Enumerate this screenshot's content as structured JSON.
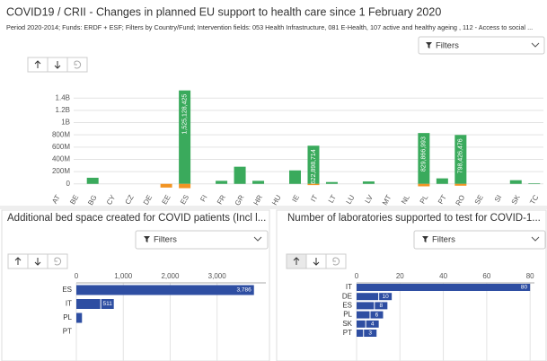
{
  "chart_data": [
    {
      "type": "bar",
      "title": "COVID19 / CRII - Changes in planned EU support to health care since 1 February 2020",
      "subtitle": "Period 2020-2014; Funds: ERDF + ESF; Filters by Country/Fund; Intervention fields: 053 Health Infrastructure, 081 E-Health, 107 active and healthy ageing , 112 - Access to social ...",
      "filters": "Filters",
      "categories": [
        "AT",
        "BE",
        "BG",
        "CY",
        "CZ",
        "DE",
        "EE",
        "ES",
        "FI",
        "FR",
        "GR",
        "HR",
        "HU",
        "IE",
        "IT",
        "LT",
        "LU",
        "LV",
        "MT",
        "NL",
        "PL",
        "PT",
        "RO",
        "SE",
        "SI",
        "SK",
        "TC"
      ],
      "series": [
        {
          "color": "#3aaa5c",
          "values": [
            0,
            0,
            100000000,
            0,
            0,
            0,
            0,
            1525128425,
            0,
            50000000,
            280000000,
            50000000,
            0,
            220000000,
            622898714,
            30000000,
            0,
            40000000,
            0,
            0,
            829866993,
            90000000,
            798426476,
            0,
            0,
            60000000,
            10000000
          ],
          "value_labels": [
            null,
            null,
            null,
            null,
            null,
            null,
            null,
            "1,525,128,425",
            null,
            null,
            null,
            null,
            null,
            null,
            "622,898,714",
            null,
            null,
            null,
            null,
            null,
            "829,866,993",
            null,
            "798,426,476",
            null,
            null,
            null,
            null
          ]
        },
        {
          "color": "#f29423",
          "values": [
            0,
            0,
            0,
            0,
            0,
            0,
            -60000000,
            -70000000,
            0,
            0,
            0,
            0,
            0,
            0,
            -20000000,
            0,
            0,
            0,
            0,
            0,
            -40000000,
            0,
            -30000000,
            0,
            0,
            0,
            0
          ]
        }
      ],
      "ylim": [
        -150000000,
        1550000000
      ],
      "yticks": [
        0,
        {
          "value": 200000000,
          "label": "200M"
        },
        {
          "value": 400000000,
          "label": "400M"
        },
        {
          "value": 600000000,
          "label": "600M"
        },
        {
          "value": 800000000,
          "label": "800M"
        },
        {
          "value": 1000000000,
          "label": "1B"
        },
        {
          "value": 1200000000,
          "label": "1.2B"
        },
        {
          "value": 1400000000,
          "label": "1.4B"
        }
      ],
      "grid": true
    },
    {
      "type": "bar",
      "orientation": "horizontal",
      "title": "Additional bed space created for COVID patients (Incl l...",
      "filters": "Filters",
      "categories": [
        "ES",
        "IT",
        "PL",
        "PT"
      ],
      "values": [
        3786,
        511,
        120,
        0
      ],
      "value_labels": [
        "3,786",
        "511",
        null,
        null
      ],
      "color": "#2e4ea2",
      "xlim": [
        0,
        4040
      ],
      "xticks": [
        0,
        {
          "value": 1000,
          "label": "1,000"
        },
        {
          "value": 2000,
          "label": "2,000"
        },
        {
          "value": 3000,
          "label": "3,000"
        }
      ],
      "grid": true
    },
    {
      "type": "bar",
      "orientation": "horizontal",
      "title": "Number of laboratories supported to test for COVID-1...",
      "filters": "Filters",
      "categories": [
        "IT",
        "DE",
        "ES",
        "PL",
        "SK",
        "PT"
      ],
      "values": [
        80,
        10,
        8,
        6,
        4,
        3
      ],
      "color": "#2e4ea2",
      "xlim": [
        0,
        82
      ],
      "xticks": [
        0,
        20,
        40,
        60,
        80
      ],
      "grid": true
    }
  ]
}
